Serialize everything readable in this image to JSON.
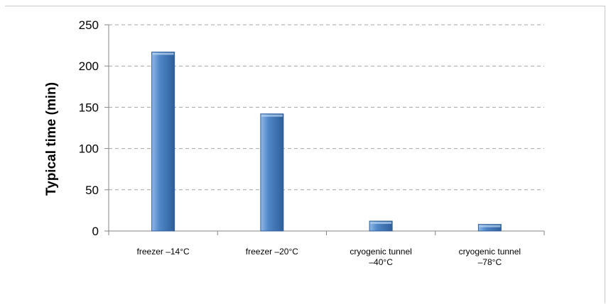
{
  "chart_data": {
    "type": "bar",
    "title": "",
    "xlabel": "",
    "ylabel": "Typical time (min)",
    "categories": [
      [
        "freezer –14°C"
      ],
      [
        "freezer –20°C"
      ],
      [
        "cryogenic tunnel",
        "–40°C"
      ],
      [
        "cryogenic tunnel",
        "–78°C"
      ]
    ],
    "values": [
      217,
      142,
      12,
      8
    ],
    "ylim": [
      0,
      250
    ],
    "yticks": [
      0,
      50,
      100,
      150,
      200,
      250
    ],
    "grid": true,
    "legend": "none",
    "colors": {
      "bar_light": "#8fb8e6",
      "bar_mid": "#4f86c6",
      "bar_dark": "#2e5f9a",
      "grid": "#a6a6a6",
      "axis": "#868686"
    }
  }
}
